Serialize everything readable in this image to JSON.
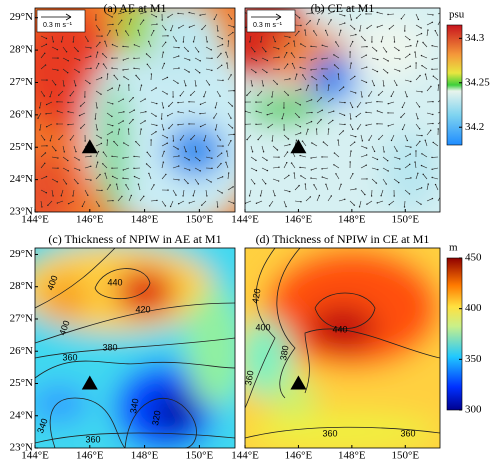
{
  "chart_data": [
    {
      "type": "field-map",
      "title": "(a) AE at M1",
      "scale_label": "0.3 m s⁻¹",
      "xlim": [
        144,
        151.3
      ],
      "ylim": [
        23,
        29.3
      ],
      "xticks": [
        {
          "value": 144,
          "label": "144°E"
        },
        {
          "value": 146,
          "label": "146°E"
        },
        {
          "value": 148,
          "label": "148°E"
        },
        {
          "value": 150,
          "label": "150°E"
        }
      ],
      "yticks": [
        {
          "value": 23,
          "label": "23°N"
        },
        {
          "value": 24,
          "label": "24°N"
        },
        {
          "value": 25,
          "label": "25°N"
        },
        {
          "value": 26,
          "label": "26°N"
        },
        {
          "value": 27,
          "label": "27°N"
        },
        {
          "value": 28,
          "label": "28°N"
        },
        {
          "value": 29,
          "label": "29°N"
        }
      ],
      "station": {
        "x": 146,
        "y": 25
      }
    },
    {
      "type": "field-map",
      "title": "(b) CE at M1",
      "scale_label": "0.3 m s⁻¹",
      "xlim": [
        144,
        151.3
      ],
      "ylim": [
        23,
        29.3
      ],
      "xticks": [
        {
          "value": 144,
          "label": "144°E"
        },
        {
          "value": 146,
          "label": "146°E"
        },
        {
          "value": 148,
          "label": "148°E"
        },
        {
          "value": 150,
          "label": "150°E"
        }
      ],
      "yticks": [],
      "station": {
        "x": 146,
        "y": 25
      },
      "colorbar": {
        "label": "psu",
        "lim": [
          34.18,
          34.315
        ],
        "ticks": [
          34.2,
          34.25,
          34.3
        ]
      }
    },
    {
      "type": "contour-map",
      "title": "(c) Thickness of NPIW in AE at M1",
      "xlim": [
        144,
        151.3
      ],
      "ylim": [
        23,
        29.2
      ],
      "xticks": [
        {
          "value": 144,
          "label": "144°E"
        },
        {
          "value": 146,
          "label": "146°E"
        },
        {
          "value": 148,
          "label": "148°E"
        },
        {
          "value": 150,
          "label": "150°E"
        }
      ],
      "yticks": [
        {
          "value": 23,
          "label": "23°N"
        },
        {
          "value": 24,
          "label": "24°N"
        },
        {
          "value": 25,
          "label": "25°N"
        },
        {
          "value": 26,
          "label": "26°N"
        },
        {
          "value": 27,
          "label": "27°N"
        },
        {
          "value": 28,
          "label": "28°N"
        },
        {
          "value": 29,
          "label": "29°N"
        }
      ],
      "station": {
        "x": 146,
        "y": 25
      },
      "contour_labels": [
        400,
        440,
        420,
        400,
        380,
        360,
        340,
        340,
        320,
        360
      ]
    },
    {
      "type": "contour-map",
      "title": "(d) Thickness of NPIW in CE at M1",
      "xlim": [
        144,
        151.3
      ],
      "ylim": [
        23,
        29.2
      ],
      "xticks": [
        {
          "value": 144,
          "label": "144°E"
        },
        {
          "value": 146,
          "label": "146°E"
        },
        {
          "value": 148,
          "label": "148°E"
        },
        {
          "value": 150,
          "label": "150°E"
        }
      ],
      "yticks": [],
      "station": {
        "x": 146,
        "y": 25
      },
      "contour_labels": [
        420,
        400,
        440,
        380,
        360,
        360,
        360
      ],
      "colorbar": {
        "label": "m",
        "lim": [
          300,
          450
        ],
        "ticks": [
          300,
          350,
          400,
          450
        ]
      }
    }
  ]
}
